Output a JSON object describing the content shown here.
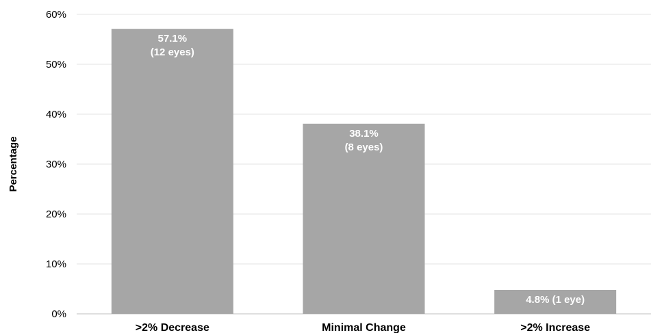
{
  "chart_data": {
    "type": "bar",
    "categories": [
      ">2% Decrease",
      "Minimal Change",
      ">2% Increase"
    ],
    "values": [
      57.1,
      38.1,
      4.8
    ],
    "data_labels": [
      [
        "57.1%",
        "(12 eyes)"
      ],
      [
        "38.1%",
        "(8 eyes)"
      ],
      [
        "4.8% (1 eye)"
      ]
    ],
    "ylabel": "Percentage",
    "xlabel": "",
    "title": "",
    "ylim": [
      0,
      60
    ],
    "yticks": [
      0,
      10,
      20,
      30,
      40,
      50,
      60
    ],
    "ytick_labels": [
      "0%",
      "10%",
      "20%",
      "30%",
      "40%",
      "50%",
      "60%"
    ],
    "grid": true,
    "legend": "none",
    "colors": {
      "bar": "#a6a6a6",
      "gridline": "#e3e3e3",
      "data_label": "#ffffff",
      "text": "#000000"
    }
  }
}
